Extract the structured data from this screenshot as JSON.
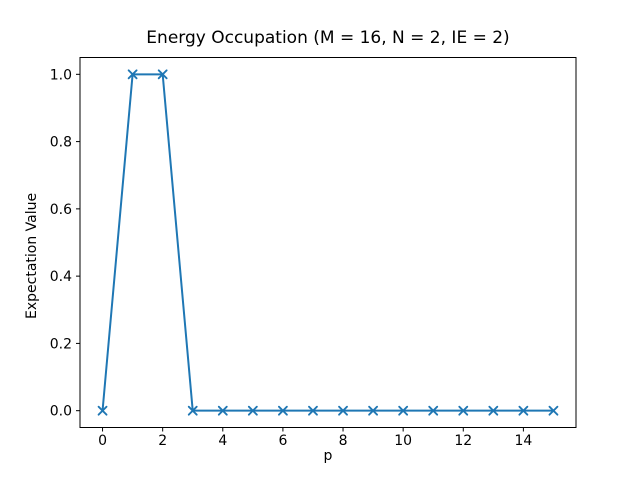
{
  "chart_data": {
    "type": "line",
    "title": "Energy Occupation (M = 16, N = 2, IE = 2)",
    "xlabel": "p",
    "ylabel": "Expectation Value",
    "x": [
      0,
      1,
      2,
      3,
      4,
      5,
      6,
      7,
      8,
      9,
      10,
      11,
      12,
      13,
      14,
      15
    ],
    "y": [
      0.0,
      1.0,
      1.0,
      0.0,
      0.0,
      0.0,
      0.0,
      0.0,
      0.0,
      0.0,
      0.0,
      0.0,
      0.0,
      0.0,
      0.0,
      0.0
    ],
    "xlim": [
      -0.75,
      15.75
    ],
    "ylim": [
      -0.05,
      1.05
    ],
    "xticks": [
      0,
      2,
      4,
      6,
      8,
      10,
      12,
      14
    ],
    "xtick_labels": [
      "0",
      "2",
      "4",
      "6",
      "8",
      "10",
      "12",
      "14"
    ],
    "yticks": [
      0.0,
      0.2,
      0.4,
      0.6,
      0.8,
      1.0
    ],
    "ytick_labels": [
      "0.0",
      "0.2",
      "0.4",
      "0.6",
      "0.8",
      "1.0"
    ],
    "marker": "x",
    "line_color": "#1f77b4",
    "axis_color": "#000000",
    "background_color": "#ffffff",
    "grid": false,
    "legend_position": "none"
  }
}
